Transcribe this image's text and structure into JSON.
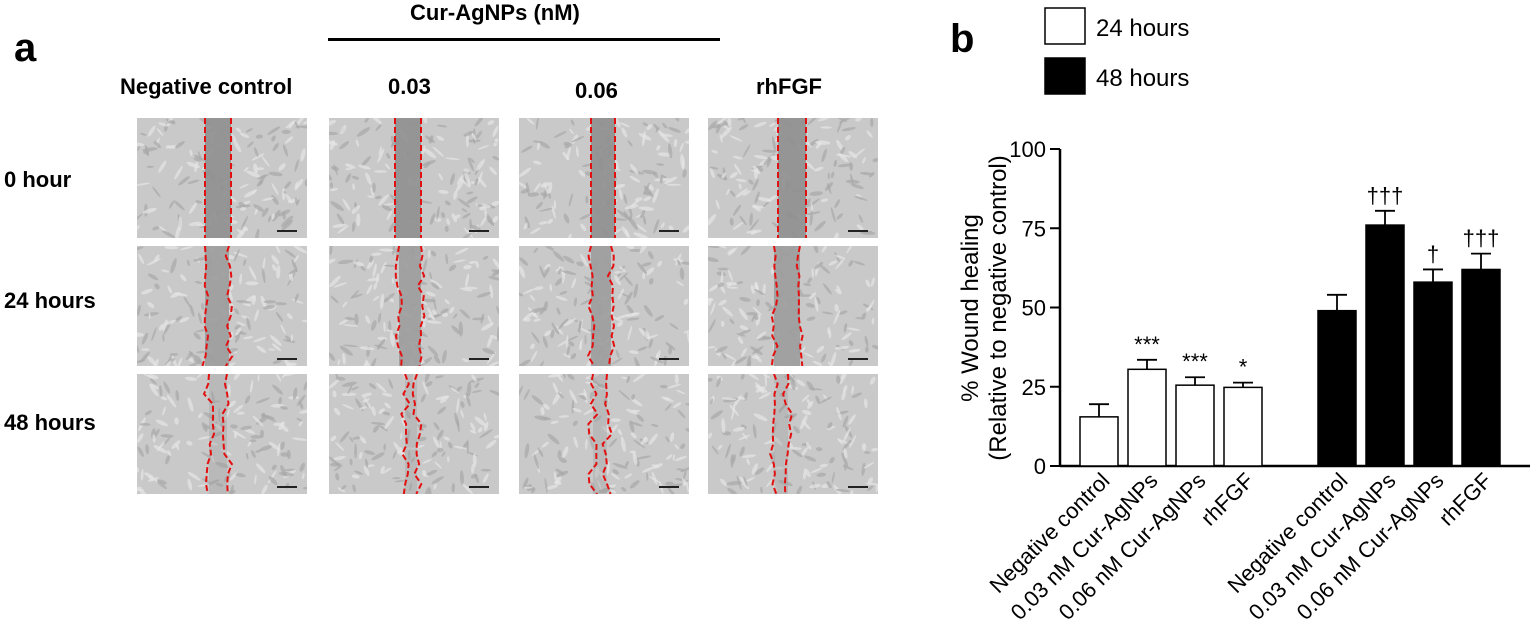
{
  "panel_a": {
    "letter": "a",
    "group_header": "Cur-AgNPs (nM)",
    "columns": [
      "Negative control",
      "0.03",
      "0.06",
      "rhFGF"
    ],
    "rows": [
      "0 hour",
      "24 hours",
      "48 hours"
    ]
  },
  "panel_b": {
    "letter": "b"
  },
  "chart_data": {
    "type": "bar",
    "ylabel": "% Wound healing",
    "ylabel2": "(Relative to negative control)",
    "ylim": [
      0,
      100
    ],
    "yticks": [
      0,
      25,
      50,
      75,
      100
    ],
    "grid": false,
    "legend_position": "top",
    "legend": [
      {
        "label": "24 hours",
        "fill": "#ffffff"
      },
      {
        "label": "48 hours",
        "fill": "#000000"
      }
    ],
    "series": [
      {
        "name": "24 hours",
        "color": "#ffffff",
        "categories": [
          "Negative control",
          "0.03 nM Cur-AgNPs",
          "0.06 nM Cur-AgNPs",
          "rhFGF"
        ],
        "values": [
          15.5,
          30.5,
          25.5,
          24.8
        ],
        "errors": [
          4.0,
          3.0,
          2.5,
          1.5
        ],
        "annotations": [
          "",
          "***",
          "***",
          "*"
        ]
      },
      {
        "name": "48 hours",
        "color": "#000000",
        "categories": [
          "Negative control",
          "0.03 nM Cur-AgNPs",
          "0.06 nM Cur-AgNPs",
          "rhFGF"
        ],
        "values": [
          49,
          76,
          58,
          62
        ],
        "errors": [
          5,
          4.5,
          4,
          5
        ],
        "annotations": [
          "",
          "†††",
          "†",
          "†††"
        ]
      }
    ]
  }
}
